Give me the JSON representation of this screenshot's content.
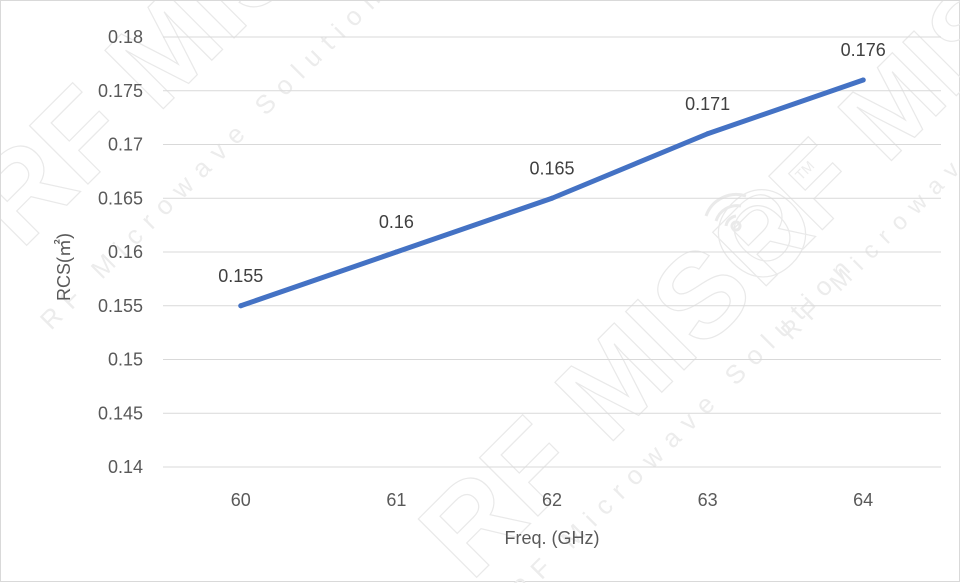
{
  "chart_data": {
    "type": "line",
    "title": "",
    "xlabel": "Freq. (GHz)",
    "ylabel": "RCS(㎡)",
    "categories": [
      "60",
      "61",
      "62",
      "63",
      "64"
    ],
    "x": [
      60,
      61,
      62,
      63,
      64
    ],
    "series": [
      {
        "values": [
          0.155,
          0.16,
          0.165,
          0.171,
          0.176
        ],
        "color": "#4472c4"
      }
    ],
    "data_labels": [
      "0.155",
      "0.16",
      "0.165",
      "0.171",
      "0.176"
    ],
    "ylim": [
      0.14,
      0.18
    ],
    "y_ticks": [
      "0.14",
      "0.145",
      "0.15",
      "0.155",
      "0.16",
      "0.165",
      "0.17",
      "0.175",
      "0.18"
    ],
    "grid": true,
    "legend": "none"
  },
  "watermark": {
    "brand": "RF MISO",
    "tagline": "RF Microwave Solution",
    "mark": "TM"
  }
}
